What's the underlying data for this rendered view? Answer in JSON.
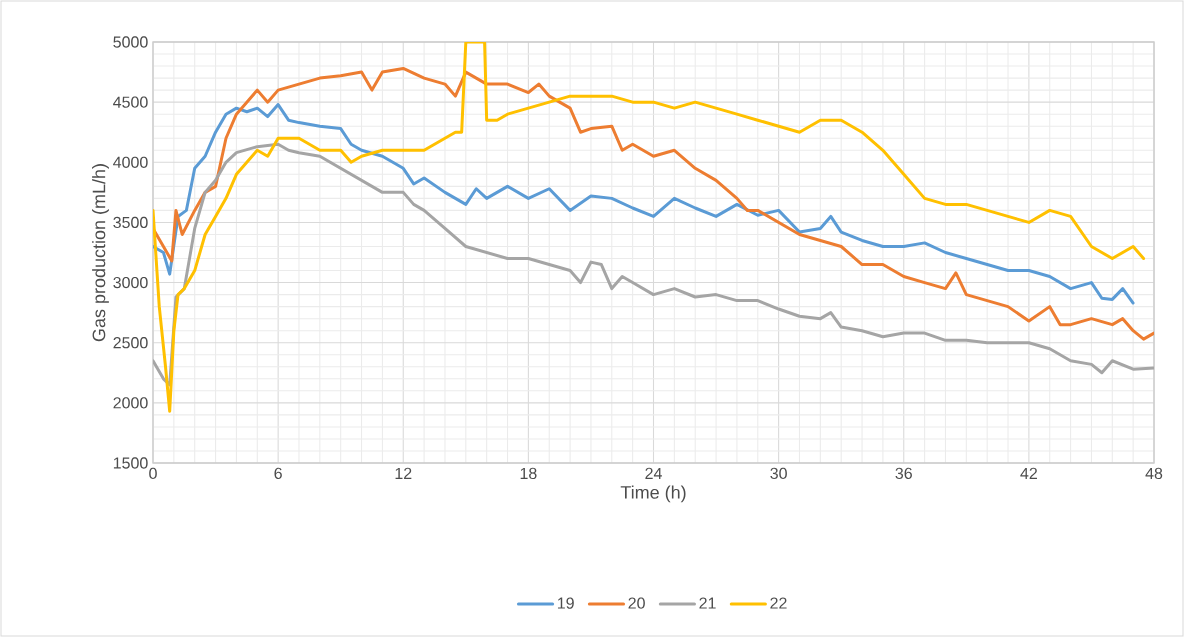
{
  "chart_data": {
    "type": "line",
    "xlabel": "Time (h)",
    "ylabel": "Gas production (mL/h)",
    "xlim": [
      0,
      48
    ],
    "ylim": [
      1500,
      5000
    ],
    "xticks": [
      0,
      6,
      12,
      18,
      24,
      30,
      36,
      42,
      48
    ],
    "yticks": [
      1500,
      2000,
      2500,
      3000,
      3500,
      4000,
      4500,
      5000
    ],
    "grid": true,
    "legend": "bottom",
    "marker": "none",
    "line_style": "solid",
    "series": [
      {
        "name": "19",
        "color": "#5b9bd5",
        "x": [
          0,
          0.5,
          0.8,
          1.2,
          1.6,
          2,
          2.5,
          3,
          3.5,
          4,
          4.5,
          5,
          5.5,
          6,
          6.5,
          7,
          8,
          9,
          9.5,
          10,
          11,
          12,
          12.5,
          13,
          14,
          15,
          15.5,
          16,
          17,
          18,
          19,
          20,
          21,
          22,
          23,
          24,
          25,
          26,
          27,
          28,
          29,
          30,
          31,
          32,
          32.5,
          33,
          34,
          35,
          36,
          37,
          38,
          39,
          40,
          41,
          42,
          43,
          44,
          45,
          45.5,
          46,
          46.5,
          47
        ],
        "values": [
          3300,
          3250,
          3070,
          3550,
          3600,
          3950,
          4050,
          4250,
          4400,
          4450,
          4420,
          4450,
          4380,
          4480,
          4350,
          4330,
          4300,
          4280,
          4150,
          4100,
          4050,
          3950,
          3820,
          3870,
          3750,
          3650,
          3780,
          3700,
          3800,
          3700,
          3780,
          3600,
          3720,
          3700,
          3620,
          3550,
          3700,
          3620,
          3550,
          3650,
          3560,
          3600,
          3420,
          3450,
          3550,
          3420,
          3350,
          3300,
          3300,
          3330,
          3250,
          3200,
          3150,
          3100,
          3100,
          3050,
          2950,
          3000,
          2870,
          2860,
          2950,
          2830
        ]
      },
      {
        "name": "20",
        "color": "#ed7d31",
        "x": [
          0,
          0.5,
          0.9,
          1.1,
          1.4,
          2,
          2.5,
          3,
          3.5,
          4,
          4.5,
          5,
          5.5,
          6,
          7,
          8,
          9,
          10,
          10.5,
          11,
          12,
          13,
          14,
          14.5,
          15,
          16,
          17,
          18,
          18.5,
          19,
          19.5,
          20,
          20.5,
          21,
          22,
          22.5,
          23,
          24,
          25,
          26,
          27,
          28,
          28.5,
          29,
          30,
          31,
          32,
          33,
          34,
          35,
          36,
          37,
          38,
          38.5,
          39,
          40,
          41,
          42,
          43,
          43.5,
          44,
          45,
          46,
          46.5,
          47,
          47.5,
          48
        ],
        "values": [
          3450,
          3300,
          3180,
          3600,
          3400,
          3600,
          3750,
          3800,
          4200,
          4400,
          4500,
          4600,
          4500,
          4600,
          4650,
          4700,
          4720,
          4750,
          4600,
          4750,
          4780,
          4700,
          4650,
          4550,
          4750,
          4650,
          4650,
          4580,
          4650,
          4550,
          4500,
          4450,
          4250,
          4280,
          4300,
          4100,
          4150,
          4050,
          4100,
          3950,
          3850,
          3700,
          3600,
          3600,
          3500,
          3400,
          3350,
          3300,
          3150,
          3150,
          3050,
          3000,
          2950,
          3080,
          2900,
          2850,
          2800,
          2680,
          2800,
          2650,
          2650,
          2700,
          2650,
          2700,
          2600,
          2530,
          2580
        ]
      },
      {
        "name": "21",
        "color": "#a5a5a5",
        "x": [
          0,
          0.5,
          0.8,
          1.1,
          1.5,
          2,
          2.5,
          3,
          3.5,
          4,
          5,
          6,
          6.5,
          7,
          8,
          9,
          10,
          11,
          12,
          12.5,
          13,
          14,
          15,
          16,
          17,
          18,
          19,
          20,
          20.5,
          21,
          21.5,
          22,
          22.5,
          23,
          24,
          25,
          26,
          27,
          28,
          29,
          30,
          31,
          32,
          32.5,
          33,
          34,
          35,
          36,
          37,
          38,
          39,
          40,
          41,
          42,
          43,
          44,
          45,
          45.5,
          46,
          47,
          48
        ],
        "values": [
          2350,
          2200,
          2150,
          2880,
          2950,
          3450,
          3750,
          3850,
          4000,
          4080,
          4130,
          4150,
          4100,
          4080,
          4050,
          3950,
          3850,
          3750,
          3750,
          3650,
          3600,
          3450,
          3300,
          3250,
          3200,
          3200,
          3150,
          3100,
          3000,
          3170,
          3150,
          2950,
          3050,
          3000,
          2900,
          2950,
          2880,
          2900,
          2850,
          2850,
          2780,
          2720,
          2700,
          2750,
          2630,
          2600,
          2550,
          2580,
          2580,
          2520,
          2520,
          2500,
          2500,
          2500,
          2450,
          2350,
          2320,
          2250,
          2350,
          2280,
          2290
        ]
      },
      {
        "name": "22",
        "color": "#ffc000",
        "x": [
          0,
          0.3,
          0.6,
          0.8,
          1,
          1.2,
          1.5,
          2,
          2.5,
          3,
          3.5,
          4,
          4.5,
          5,
          5.5,
          6,
          7,
          8,
          9,
          9.5,
          10,
          11,
          12,
          13,
          14,
          14.5,
          14.8,
          15,
          15.9,
          16,
          16.5,
          17,
          18,
          19,
          20,
          21,
          22,
          23,
          24,
          25,
          26,
          27,
          28,
          29,
          30,
          31,
          32,
          33,
          34,
          35,
          35.5,
          36,
          37,
          38,
          39,
          40,
          41,
          42,
          43,
          44,
          45,
          45.5,
          46,
          47,
          47.5
        ],
        "values": [
          3600,
          2800,
          2300,
          1930,
          2600,
          2900,
          2950,
          3100,
          3400,
          3550,
          3700,
          3900,
          4000,
          4100,
          4050,
          4200,
          4200,
          4100,
          4100,
          4000,
          4050,
          4100,
          4100,
          4100,
          4200,
          4250,
          4250,
          5000,
          5000,
          4350,
          4350,
          4400,
          4450,
          4500,
          4550,
          4550,
          4550,
          4500,
          4500,
          4450,
          4500,
          4450,
          4400,
          4350,
          4300,
          4250,
          4350,
          4350,
          4250,
          4100,
          4000,
          3900,
          3700,
          3650,
          3650,
          3600,
          3550,
          3500,
          3600,
          3550,
          3300,
          3250,
          3200,
          3300,
          3200
        ]
      }
    ]
  }
}
